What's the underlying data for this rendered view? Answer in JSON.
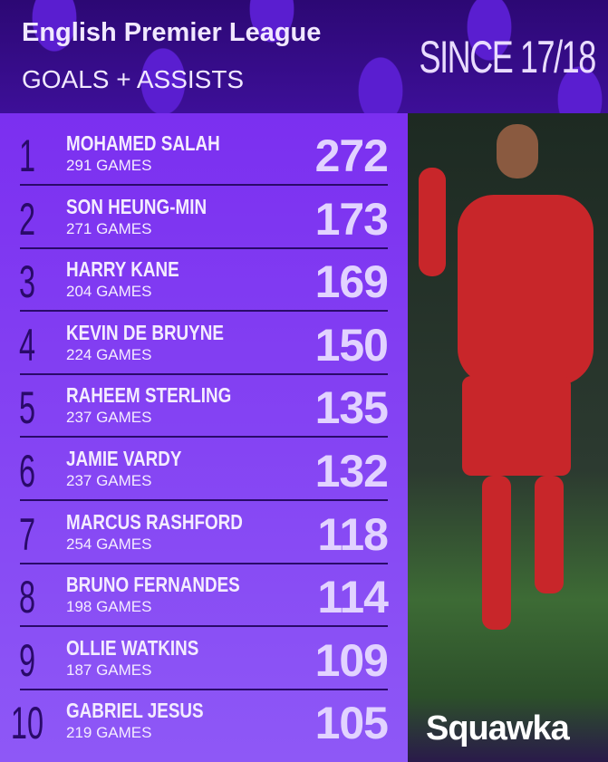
{
  "header": {
    "title": "English Premier League",
    "subtitle": "GOALS + ASSISTS",
    "since": "SINCE 17/18"
  },
  "rows": [
    {
      "rank": "1",
      "name": "MOHAMED SALAH",
      "games": "291 GAMES",
      "value": "272"
    },
    {
      "rank": "2",
      "name": "SON HEUNG-MIN",
      "games": "271 GAMES",
      "value": "173"
    },
    {
      "rank": "3",
      "name": "HARRY KANE",
      "games": "204 GAMES",
      "value": "169"
    },
    {
      "rank": "4",
      "name": "KEVIN DE BRUYNE",
      "games": "224 GAMES",
      "value": "150"
    },
    {
      "rank": "5",
      "name": "RAHEEM STERLING",
      "games": "237 GAMES",
      "value": "135"
    },
    {
      "rank": "6",
      "name": "JAMIE VARDY",
      "games": "237 GAMES",
      "value": "132"
    },
    {
      "rank": "7",
      "name": "MARCUS RASHFORD",
      "games": "254 GAMES",
      "value": "118"
    },
    {
      "rank": "8",
      "name": "BRUNO FERNANDES",
      "games": "198 GAMES",
      "value": "114"
    },
    {
      "rank": "9",
      "name": "OLLIE WATKINS",
      "games": "187 GAMES",
      "value": "109"
    },
    {
      "rank": "10",
      "name": "GABRIEL JESUS",
      "games": "219 GAMES",
      "value": "105"
    }
  ],
  "logo": "Squawka",
  "colors": {
    "header": "#2c0874",
    "panel": "#7b2ff0",
    "rank": "#2a0a6a",
    "kit": "#c8262a"
  }
}
